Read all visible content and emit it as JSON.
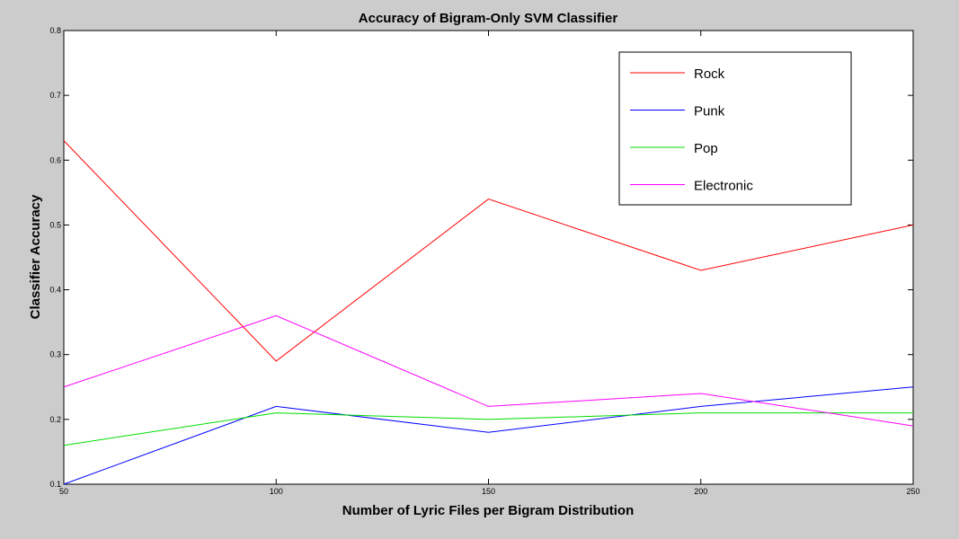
{
  "chart_data": {
    "type": "line",
    "title": "Accuracy of Bigram-Only SVM Classifier",
    "xlabel": "Number of Lyric Files per Bigram Distribution",
    "ylabel": "Classifier Accuracy",
    "x": [
      50,
      100,
      150,
      200,
      250
    ],
    "xlim": [
      50,
      250
    ],
    "ylim": [
      0.1,
      0.8
    ],
    "xticks": [
      "50",
      "100",
      "150",
      "200",
      "250"
    ],
    "yticks": [
      "0.1",
      "0.2",
      "0.3",
      "0.4",
      "0.5",
      "0.6",
      "0.7",
      "0.8"
    ],
    "grid": false,
    "legend_position": "top-right",
    "background": "#cccccc",
    "plot_background": "#ffffff",
    "series": [
      {
        "name": "Rock",
        "color": "#ff0000",
        "values": [
          0.63,
          0.29,
          0.54,
          0.43,
          0.5
        ]
      },
      {
        "name": "Punk",
        "color": "#0000ff",
        "values": [
          0.1,
          0.22,
          0.18,
          0.22,
          0.25
        ]
      },
      {
        "name": "Pop",
        "color": "#00dd00",
        "values": [
          0.16,
          0.21,
          0.2,
          0.21,
          0.21
        ]
      },
      {
        "name": "Electronic",
        "color": "#ff00ff",
        "values": [
          0.25,
          0.36,
          0.22,
          0.24,
          0.19
        ]
      }
    ]
  }
}
